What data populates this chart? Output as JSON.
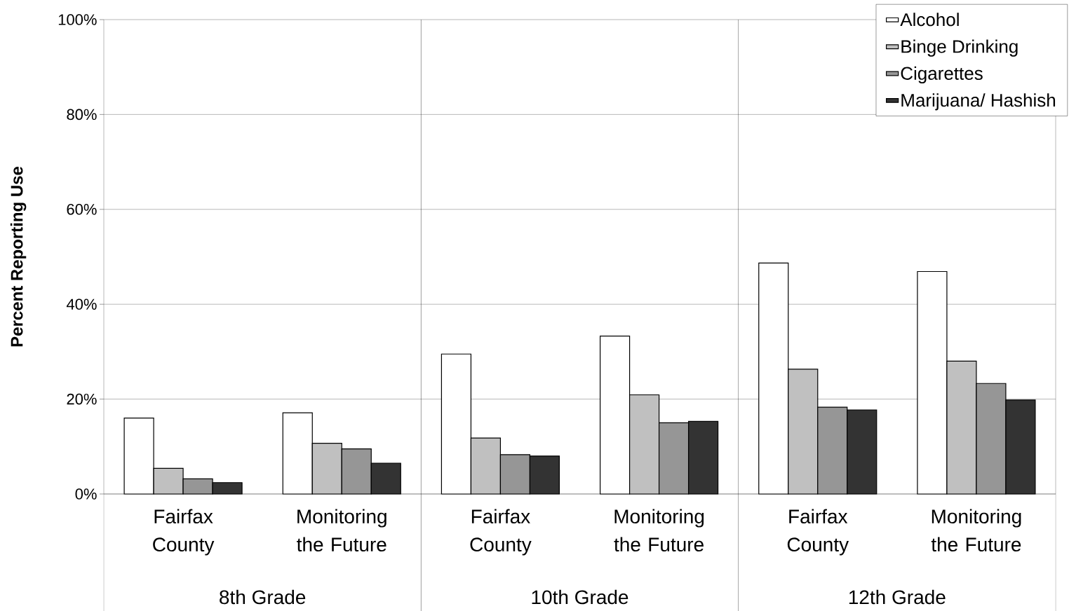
{
  "chart_data": {
    "type": "bar",
    "ylabel": "Percent Reporting Use",
    "categories": [
      "Fairfax County",
      "Monitoring the Future",
      "Fairfax County",
      "Monitoring the Future",
      "Fairfax County",
      "Monitoring the Future"
    ],
    "series": [
      {
        "name": "Alcohol",
        "color": "#ffffff",
        "values": [
          16.0,
          17.1,
          29.5,
          33.3,
          48.7,
          46.9
        ]
      },
      {
        "name": "Binge Drinking",
        "color": "#c0c0c0",
        "values": [
          5.4,
          10.7,
          11.8,
          20.9,
          26.3,
          28.0
        ]
      },
      {
        "name": "Cigarettes",
        "color": "#969696",
        "values": [
          3.2,
          9.5,
          8.3,
          15.0,
          18.3,
          23.3
        ]
      },
      {
        "name": "Marijuana/ Hashish",
        "color": "#333333",
        "values": [
          2.4,
          6.5,
          8.0,
          15.3,
          17.7,
          19.8
        ]
      }
    ],
    "ylim": [
      0,
      100
    ],
    "yticks": [
      {
        "value": 0,
        "label": "0%"
      },
      {
        "value": 20,
        "label": "20%"
      },
      {
        "value": 40,
        "label": "40%"
      },
      {
        "value": 60,
        "label": "60%"
      },
      {
        "value": 80,
        "label": "80%"
      },
      {
        "value": 100,
        "label": "100%"
      }
    ],
    "grid": "y",
    "legend": "top right",
    "annotations": [
      "8th Grade",
      "10th Grade",
      "12th Grade"
    ]
  }
}
